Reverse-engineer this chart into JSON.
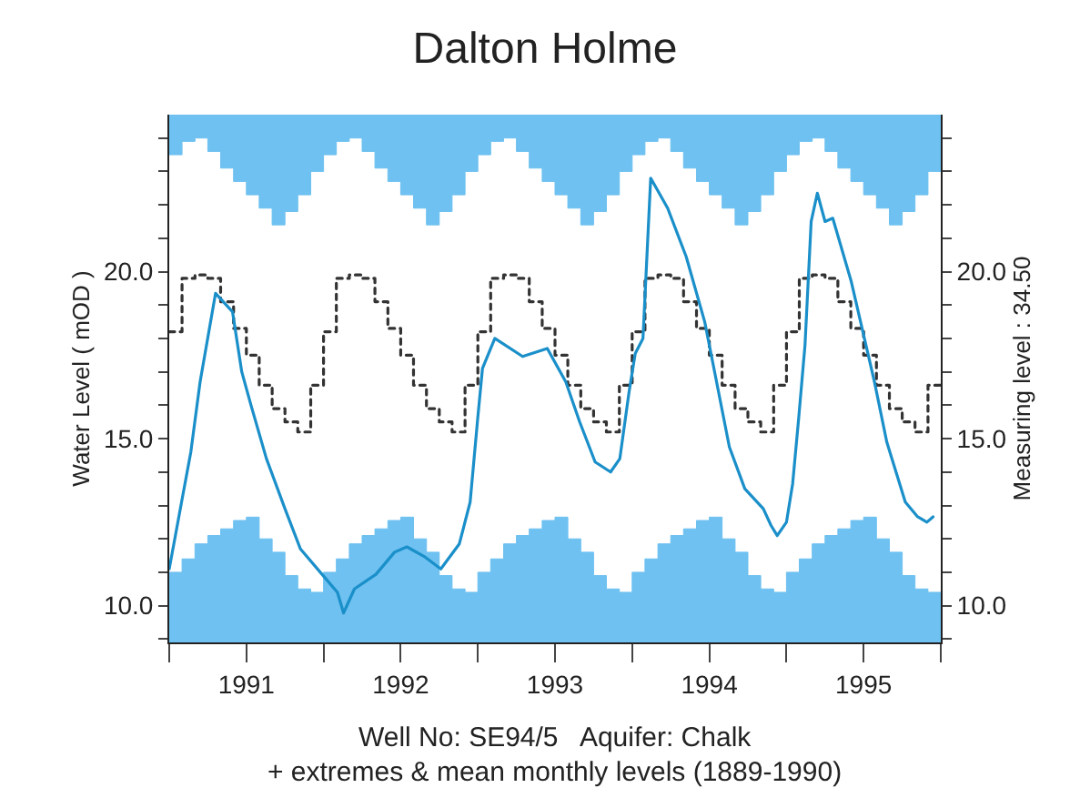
{
  "chart_data": {
    "type": "line",
    "title": "Dalton Holme",
    "ylabel": "Water Level ( mOD )",
    "y2label": "Measuring level : 34.50",
    "annotations": [
      "Well No: SE94/5   Aquifer: Chalk",
      "+ extremes & mean monthly levels (1889-1990)"
    ],
    "xlim": [
      1991,
      1996
    ],
    "xticks": [
      {
        "value": 1991,
        "label": null
      },
      {
        "value": 1991.5,
        "label": "1991"
      },
      {
        "value": 1992,
        "label": null
      },
      {
        "value": 1992.5,
        "label": "1992"
      },
      {
        "value": 1993,
        "label": null
      },
      {
        "value": 1993.5,
        "label": "1993"
      },
      {
        "value": 1994,
        "label": null
      },
      {
        "value": 1994.5,
        "label": "1994"
      },
      {
        "value": 1995,
        "label": null
      },
      {
        "value": 1995.5,
        "label": "1995"
      },
      {
        "value": 1996,
        "label": null
      }
    ],
    "ylim": [
      8.9,
      24.7
    ],
    "yticks": [
      {
        "value": 9,
        "label": null
      },
      {
        "value": 10,
        "label": "10.0"
      },
      {
        "value": 11,
        "label": null
      },
      {
        "value": 12,
        "label": null
      },
      {
        "value": 13,
        "label": null
      },
      {
        "value": 14,
        "label": null
      },
      {
        "value": 15,
        "label": "15.0"
      },
      {
        "value": 16,
        "label": null
      },
      {
        "value": 17,
        "label": null
      },
      {
        "value": 18,
        "label": null
      },
      {
        "value": 19,
        "label": null
      },
      {
        "value": 20,
        "label": "20.0"
      },
      {
        "value": 21,
        "label": null
      },
      {
        "value": 22,
        "label": null
      },
      {
        "value": 23,
        "label": null
      },
      {
        "value": 24,
        "label": null
      }
    ],
    "y2lim": [
      8.9,
      24.7
    ],
    "y2ticks": [
      {
        "value": 9,
        "label": null
      },
      {
        "value": 10,
        "label": "10.0"
      },
      {
        "value": 11,
        "label": null
      },
      {
        "value": 12,
        "label": null
      },
      {
        "value": 13,
        "label": null
      },
      {
        "value": 14,
        "label": null
      },
      {
        "value": 15,
        "label": "15.0"
      },
      {
        "value": 16,
        "label": null
      },
      {
        "value": 17,
        "label": null
      },
      {
        "value": 18,
        "label": null
      },
      {
        "value": 19,
        "label": null
      },
      {
        "value": 20,
        "label": "20.0"
      },
      {
        "value": 21,
        "label": null
      },
      {
        "value": 22,
        "label": null
      },
      {
        "value": 23,
        "label": null
      },
      {
        "value": 24,
        "label": null
      }
    ],
    "series": [
      {
        "type": "area",
        "color": "#6ec1f0",
        "x": [
          1991,
          1991.083,
          1991.167,
          1991.25,
          1991.333,
          1991.417,
          1991.5,
          1991.583,
          1991.667,
          1991.75,
          1991.833,
          1991.917,
          1992,
          1992.083,
          1992.167,
          1992.25,
          1992.333,
          1992.417,
          1992.5,
          1992.583,
          1992.667,
          1992.75,
          1992.833,
          1992.917,
          1993,
          1993.083,
          1993.167,
          1993.25,
          1993.333,
          1993.417,
          1993.5,
          1993.583,
          1993.667,
          1993.75,
          1993.833,
          1993.917,
          1994,
          1994.083,
          1994.167,
          1994.25,
          1994.333,
          1994.417,
          1994.5,
          1994.583,
          1994.667,
          1994.75,
          1994.833,
          1994.917,
          1995,
          1995.083,
          1995.167,
          1995.25,
          1995.333,
          1995.417,
          1995.5,
          1995.583,
          1995.667,
          1995.75,
          1995.833,
          1995.917,
          1996
        ],
        "values": [
          11.0,
          11.4,
          11.85,
          12.1,
          12.3,
          12.55,
          12.65,
          12.0,
          11.6,
          10.9,
          10.5,
          10.4,
          11.0,
          11.4,
          11.85,
          12.1,
          12.3,
          12.55,
          12.65,
          12.0,
          11.6,
          10.9,
          10.5,
          10.4,
          11.0,
          11.4,
          11.85,
          12.1,
          12.3,
          12.55,
          12.65,
          12.0,
          11.6,
          10.9,
          10.5,
          10.4,
          11.0,
          11.4,
          11.85,
          12.1,
          12.3,
          12.55,
          12.65,
          12.0,
          11.6,
          10.9,
          10.5,
          10.4,
          11.0,
          11.4,
          11.85,
          12.1,
          12.3,
          12.55,
          12.65,
          12.0,
          11.6,
          10.9,
          10.5,
          10.4,
          10.4
        ]
      },
      {
        "type": "area",
        "color": "#6ec1f0",
        "x": [
          1991,
          1991.083,
          1991.167,
          1991.25,
          1991.333,
          1991.417,
          1991.5,
          1991.583,
          1991.667,
          1991.75,
          1991.833,
          1991.917,
          1992,
          1992.083,
          1992.167,
          1992.25,
          1992.333,
          1992.417,
          1992.5,
          1992.583,
          1992.667,
          1992.75,
          1992.833,
          1992.917,
          1993,
          1993.083,
          1993.167,
          1993.25,
          1993.333,
          1993.417,
          1993.5,
          1993.583,
          1993.667,
          1993.75,
          1993.833,
          1993.917,
          1994,
          1994.083,
          1994.167,
          1994.25,
          1994.333,
          1994.417,
          1994.5,
          1994.583,
          1994.667,
          1994.75,
          1994.833,
          1994.917,
          1995,
          1995.083,
          1995.167,
          1995.25,
          1995.333,
          1995.417,
          1995.5,
          1995.583,
          1995.667,
          1995.75,
          1995.833,
          1995.917,
          1996
        ],
        "values": [
          23.5,
          23.9,
          24.0,
          23.6,
          23.1,
          22.7,
          22.3,
          21.9,
          21.4,
          21.8,
          22.3,
          23.0,
          23.5,
          23.9,
          24.0,
          23.6,
          23.1,
          22.7,
          22.3,
          21.9,
          21.4,
          21.8,
          22.3,
          23.0,
          23.5,
          23.9,
          24.0,
          23.6,
          23.1,
          22.7,
          22.3,
          21.9,
          21.4,
          21.8,
          22.3,
          23.0,
          23.5,
          23.9,
          24.0,
          23.6,
          23.1,
          22.7,
          22.3,
          21.9,
          21.4,
          21.8,
          22.3,
          23.0,
          23.5,
          23.9,
          24.0,
          23.6,
          23.1,
          22.7,
          22.3,
          21.9,
          21.4,
          21.8,
          22.3,
          23.0,
          23.0
        ]
      },
      {
        "type": "step",
        "color": "#333333",
        "line_style": "dotted",
        "x": [
          1991,
          1991.083,
          1991.167,
          1991.25,
          1991.333,
          1991.417,
          1991.5,
          1991.583,
          1991.667,
          1991.75,
          1991.833,
          1991.917,
          1992,
          1992.083,
          1992.167,
          1992.25,
          1992.333,
          1992.417,
          1992.5,
          1992.583,
          1992.667,
          1992.75,
          1992.833,
          1992.917,
          1993,
          1993.083,
          1993.167,
          1993.25,
          1993.333,
          1993.417,
          1993.5,
          1993.583,
          1993.667,
          1993.75,
          1993.833,
          1993.917,
          1994,
          1994.083,
          1994.167,
          1994.25,
          1994.333,
          1994.417,
          1994.5,
          1994.583,
          1994.667,
          1994.75,
          1994.833,
          1994.917,
          1995,
          1995.083,
          1995.167,
          1995.25,
          1995.333,
          1995.417,
          1995.5,
          1995.583,
          1995.667,
          1995.75,
          1995.833,
          1995.917,
          1996
        ],
        "values": [
          18.2,
          19.8,
          19.9,
          19.8,
          19.1,
          18.3,
          17.5,
          16.6,
          15.9,
          15.5,
          15.2,
          16.6,
          18.2,
          19.8,
          19.9,
          19.8,
          19.1,
          18.3,
          17.5,
          16.6,
          15.9,
          15.5,
          15.2,
          16.6,
          18.2,
          19.8,
          19.9,
          19.8,
          19.1,
          18.3,
          17.5,
          16.6,
          15.9,
          15.5,
          15.2,
          16.6,
          18.2,
          19.8,
          19.9,
          19.8,
          19.1,
          18.3,
          17.5,
          16.6,
          15.9,
          15.5,
          15.2,
          16.6,
          18.2,
          19.8,
          19.9,
          19.8,
          19.1,
          18.3,
          17.5,
          16.6,
          15.9,
          15.5,
          15.2,
          16.6,
          16.6
        ]
      },
      {
        "axis": "y2",
        "color": "#1a8fc9",
        "line_style": "solid",
        "x": [
          1991.0,
          1991.08,
          1991.14,
          1991.2,
          1991.3,
          1991.41,
          1991.47,
          1991.53,
          1991.63,
          1991.75,
          1991.85,
          1991.99,
          1992.09,
          1992.13,
          1992.2,
          1992.34,
          1992.46,
          1992.54,
          1992.65,
          1992.76,
          1992.88,
          1992.95,
          1993.0,
          1993.03,
          1993.11,
          1993.29,
          1993.45,
          1993.57,
          1993.66,
          1993.76,
          1993.86,
          1993.92,
          1993.98,
          1994.02,
          1994.07,
          1994.12,
          1994.23,
          1994.35,
          1994.47,
          1994.53,
          1994.63,
          1994.73,
          1994.85,
          1994.9,
          1994.94,
          1995.0,
          1995.04,
          1995.08,
          1995.12,
          1995.16,
          1995.2,
          1995.25,
          1995.3,
          1995.42,
          1995.52,
          1995.57,
          1995.65,
          1995.77,
          1995.85,
          1995.91,
          1995.95
        ],
        "values": [
          11.1,
          13.1,
          14.6,
          16.7,
          19.35,
          18.8,
          17.0,
          16.0,
          14.4,
          12.9,
          11.7,
          10.94,
          10.4,
          9.78,
          10.5,
          10.94,
          11.6,
          11.76,
          11.48,
          11.1,
          11.85,
          13.1,
          15.65,
          17.1,
          18.0,
          17.46,
          17.7,
          16.7,
          15.5,
          14.3,
          14.0,
          14.4,
          16.4,
          17.55,
          18.0,
          22.8,
          21.9,
          20.45,
          18.5,
          17.1,
          14.75,
          13.5,
          12.9,
          12.4,
          12.1,
          12.5,
          13.65,
          15.65,
          17.8,
          21.5,
          22.35,
          21.5,
          21.6,
          19.7,
          17.7,
          16.7,
          14.9,
          13.1,
          12.66,
          12.5,
          12.66
        ]
      }
    ]
  }
}
